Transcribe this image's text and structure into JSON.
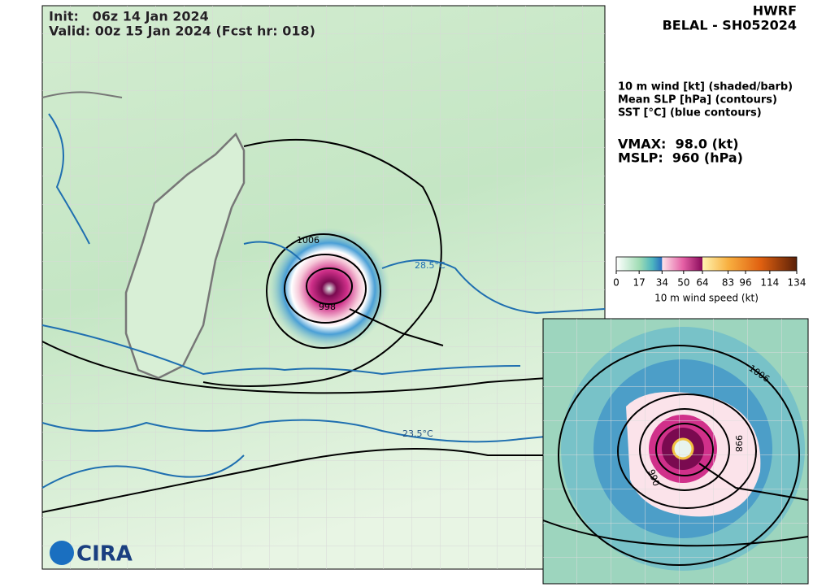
{
  "header": {
    "init": "Init:   06z 14 Jan 2024",
    "valid": "Valid: 00z 15 Jan 2024 (Fcst hr: 018)"
  },
  "model": "HWRF",
  "storm": "BELAL - SH052024",
  "fields": [
    "10 m wind [kt] (shaded/barb)",
    "Mean SLP [hPa] (contours)",
    "SST [°C] (blue contours)"
  ],
  "vmax": "VMAX:  98.0 (kt)",
  "mslp": "MSLP:  960 (hPa)",
  "colorbar": {
    "label": "10 m wind speed (kt)",
    "lim": [
      0,
      134
    ],
    "ticks": [
      0,
      17,
      34,
      50,
      64,
      83,
      96,
      114,
      134
    ]
  },
  "map_labels": {
    "slp_outer": "1006",
    "sst_warm": "28.5°C",
    "sst_cool": "23.5°C",
    "slp_inner": "998"
  },
  "inset_labels": {
    "slp_outer": "1006",
    "slp_inner": "998",
    "slp_core": "990"
  },
  "logo": "CIRA"
}
